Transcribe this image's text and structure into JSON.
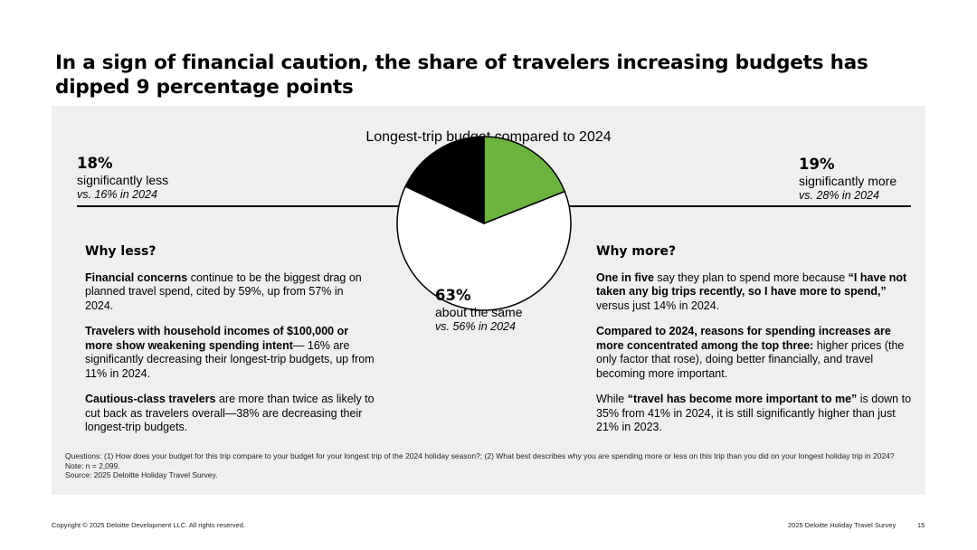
{
  "title": "In a sign of financial caution, the share of travelers increasing budgets has dipped 9 percentage points",
  "chart_data": {
    "type": "pie",
    "title": "Longest-trip budget compared to 2024",
    "slices": [
      {
        "label": "significantly more",
        "value": 19,
        "pct_label": "19%",
        "comparison": "vs. 28% in 2024",
        "color": "#6db33f"
      },
      {
        "label": "about the same",
        "value": 63,
        "pct_label": "63%",
        "comparison": "vs. 56% in 2024",
        "color": "#ffffff"
      },
      {
        "label": "significantly less",
        "value": 18,
        "pct_label": "18%",
        "comparison": "vs. 16% in 2024",
        "color": "#000000"
      }
    ]
  },
  "why_less": {
    "heading": "Why less?",
    "p1_bold": "Financial concerns",
    "p1_text": " continue to be the biggest drag on planned travel spend, cited by 59%, up from 57% in 2024.",
    "p2_bold": "Travelers with household incomes of $100,000 or more show weakening spending intent",
    "p2_text": "— 16% are significantly decreasing their longest-trip budgets, up from 11% in 2024.",
    "p3_bold": "Cautious-class travelers",
    "p3_text": " are more than twice as likely to cut back as travelers overall—38% are decreasing their longest-trip budgets."
  },
  "why_more": {
    "heading": "Why more?",
    "p1_bold1": "One in five",
    "p1_text1": " say they plan to spend more because ",
    "p1_bold2": "“I have not taken any big trips recently, so I have more to spend,”",
    "p1_text2": " versus just 14% in 2024.",
    "p2_bold": "Compared to 2024, reasons for spending increases are more concentrated among the top three:",
    "p2_text": " higher prices (the only factor that rose), doing better financially, and travel becoming more important.",
    "p3_text1": "While ",
    "p3_bold": "“travel has become more important to me”",
    "p3_text2": " is down to 35% from 41% in 2024, it is still significantly higher than just 21% in 2023."
  },
  "notes": {
    "questions": "Questions: (1) How does your budget for this trip compare to your budget for your longest trip of the 2024 holiday season?; (2) What best describes why you are spending more or less on this trip than you did on your longest holiday trip in 2024?",
    "n": "Note: n = 2,099.",
    "source": "Source: 2025 Deloitte Holiday Travel Survey."
  },
  "footer": {
    "copyright": "Copyright © 2025 Deloitte Development LLC. All rights reserved.",
    "survey": "2025 Deloitte Holiday Travel Survey",
    "page": "15"
  }
}
